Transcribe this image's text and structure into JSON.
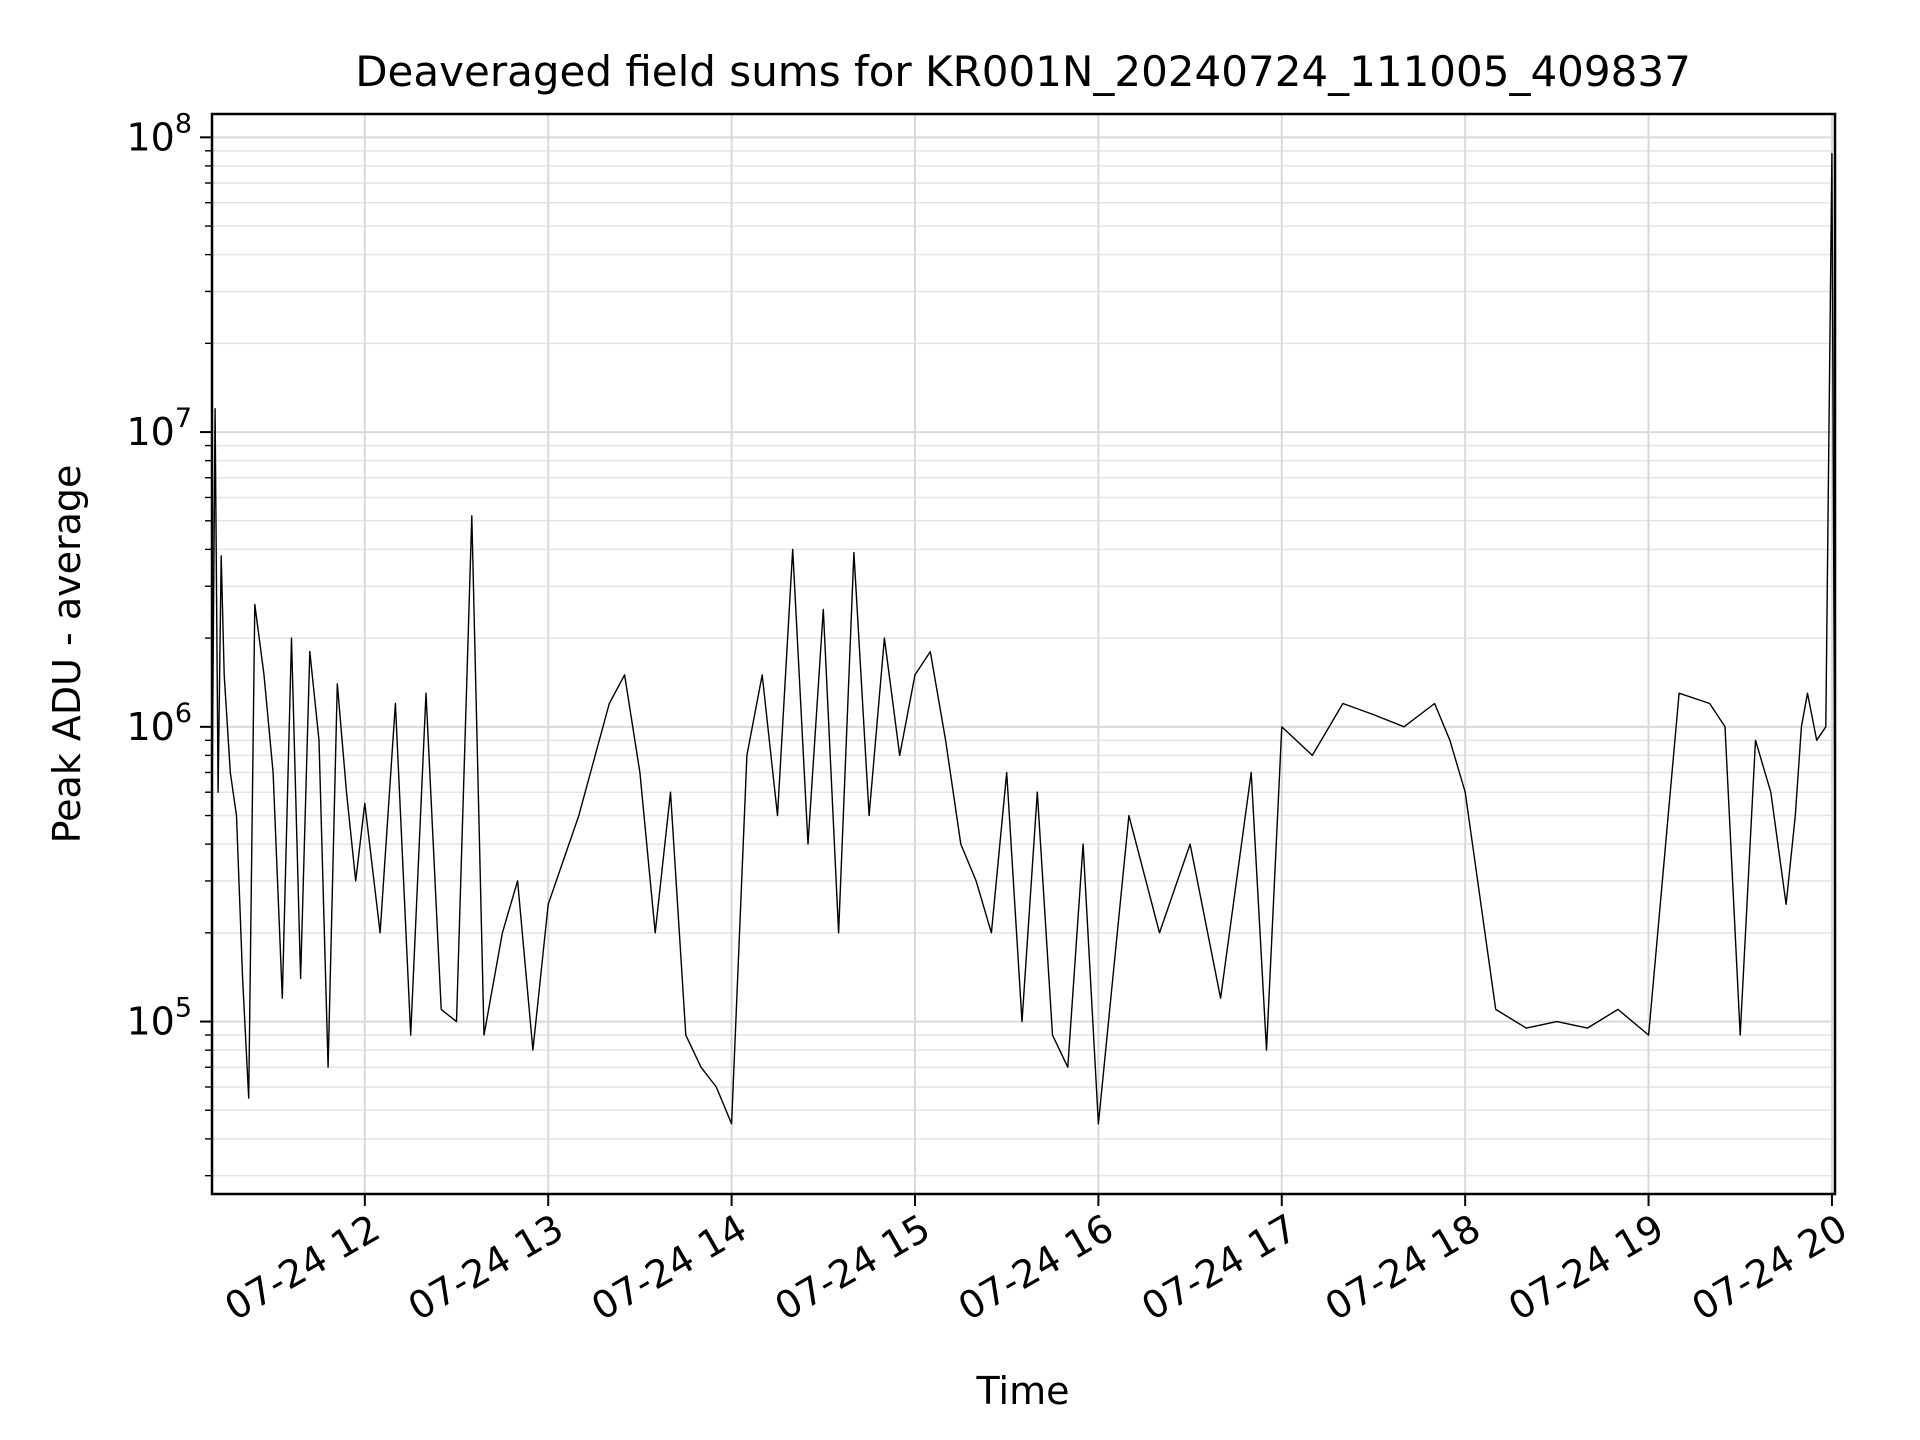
{
  "chart_data": {
    "type": "line",
    "title": "Deaveraged field sums for KR001N_20240724_111005_409837",
    "xlabel": "Time",
    "ylabel": "Peak ADU - average",
    "yscale": "log",
    "ylim": [
      26000,
      120000000
    ],
    "xlim": [
      "2024-07-24 11:10",
      "2024-07-24 20:01"
    ],
    "grid": true,
    "line_color": "#000000",
    "x_ticks": [
      {
        "value": "2024-07-24 12:00",
        "label": "07-24 12"
      },
      {
        "value": "2024-07-24 13:00",
        "label": "07-24 13"
      },
      {
        "value": "2024-07-24 14:00",
        "label": "07-24 14"
      },
      {
        "value": "2024-07-24 15:00",
        "label": "07-24 15"
      },
      {
        "value": "2024-07-24 16:00",
        "label": "07-24 16"
      },
      {
        "value": "2024-07-24 17:00",
        "label": "07-24 17"
      },
      {
        "value": "2024-07-24 18:00",
        "label": "07-24 18"
      },
      {
        "value": "2024-07-24 19:00",
        "label": "07-24 19"
      },
      {
        "value": "2024-07-24 20:00",
        "label": "07-24 20"
      }
    ],
    "y_ticks": [
      {
        "value": 100000,
        "base": "10",
        "exp": "5"
      },
      {
        "value": 1000000,
        "base": "10",
        "exp": "6"
      },
      {
        "value": 10000000,
        "base": "10",
        "exp": "7"
      },
      {
        "value": 100000000,
        "base": "10",
        "exp": "8"
      }
    ],
    "series": [
      {
        "color": "#000000",
        "x": [
          "2024-07-24 11:10",
          "2024-07-24 11:11",
          "2024-07-24 11:12",
          "2024-07-24 11:13",
          "2024-07-24 11:14",
          "2024-07-24 11:16",
          "2024-07-24 11:18",
          "2024-07-24 11:20",
          "2024-07-24 11:22",
          "2024-07-24 11:24",
          "2024-07-24 11:27",
          "2024-07-24 11:30",
          "2024-07-24 11:33",
          "2024-07-24 11:36",
          "2024-07-24 11:39",
          "2024-07-24 11:42",
          "2024-07-24 11:45",
          "2024-07-24 11:48",
          "2024-07-24 11:51",
          "2024-07-24 11:54",
          "2024-07-24 11:57",
          "2024-07-24 12:00",
          "2024-07-24 12:05",
          "2024-07-24 12:10",
          "2024-07-24 12:15",
          "2024-07-24 12:20",
          "2024-07-24 12:25",
          "2024-07-24 12:30",
          "2024-07-24 12:35",
          "2024-07-24 12:39",
          "2024-07-24 12:45",
          "2024-07-24 12:50",
          "2024-07-24 12:55",
          "2024-07-24 13:00",
          "2024-07-24 13:10",
          "2024-07-24 13:20",
          "2024-07-24 13:25",
          "2024-07-24 13:30",
          "2024-07-24 13:35",
          "2024-07-24 13:40",
          "2024-07-24 13:45",
          "2024-07-24 13:50",
          "2024-07-24 13:55",
          "2024-07-24 14:00",
          "2024-07-24 14:05",
          "2024-07-24 14:10",
          "2024-07-24 14:15",
          "2024-07-24 14:20",
          "2024-07-24 14:25",
          "2024-07-24 14:30",
          "2024-07-24 14:35",
          "2024-07-24 14:40",
          "2024-07-24 14:45",
          "2024-07-24 14:50",
          "2024-07-24 14:55",
          "2024-07-24 15:00",
          "2024-07-24 15:05",
          "2024-07-24 15:10",
          "2024-07-24 15:15",
          "2024-07-24 15:20",
          "2024-07-24 15:25",
          "2024-07-24 15:30",
          "2024-07-24 15:35",
          "2024-07-24 15:40",
          "2024-07-24 15:45",
          "2024-07-24 15:50",
          "2024-07-24 15:55",
          "2024-07-24 16:00",
          "2024-07-24 16:10",
          "2024-07-24 16:20",
          "2024-07-24 16:30",
          "2024-07-24 16:40",
          "2024-07-24 16:50",
          "2024-07-24 16:55",
          "2024-07-24 17:00",
          "2024-07-24 17:10",
          "2024-07-24 17:20",
          "2024-07-24 17:30",
          "2024-07-24 17:40",
          "2024-07-24 17:50",
          "2024-07-24 17:55",
          "2024-07-24 18:00",
          "2024-07-24 18:10",
          "2024-07-24 18:20",
          "2024-07-24 18:30",
          "2024-07-24 18:40",
          "2024-07-24 18:50",
          "2024-07-24 19:00",
          "2024-07-24 19:10",
          "2024-07-24 19:20",
          "2024-07-24 19:25",
          "2024-07-24 19:30",
          "2024-07-24 19:35",
          "2024-07-24 19:40",
          "2024-07-24 19:45",
          "2024-07-24 19:48",
          "2024-07-24 19:50",
          "2024-07-24 19:52",
          "2024-07-24 19:55",
          "2024-07-24 19:58",
          "2024-07-24 20:00",
          "2024-07-24 20:01"
        ],
        "y": [
          520000,
          12000000,
          600000,
          3800000,
          1500000,
          700000,
          500000,
          140000,
          55000,
          2600000,
          1500000,
          700000,
          120000,
          2000000,
          140000,
          1800000,
          900000,
          70000,
          1400000,
          600000,
          300000,
          550000,
          200000,
          1200000,
          90000,
          1300000,
          110000,
          100000,
          5200000,
          90000,
          200000,
          300000,
          80000,
          250000,
          500000,
          1200000,
          1500000,
          700000,
          200000,
          600000,
          90000,
          70000,
          60000,
          45000,
          800000,
          1500000,
          500000,
          4000000,
          400000,
          2500000,
          200000,
          3900000,
          500000,
          2000000,
          800000,
          1500000,
          1800000,
          900000,
          400000,
          300000,
          200000,
          700000,
          100000,
          600000,
          90000,
          70000,
          400000,
          45000,
          500000,
          200000,
          400000,
          120000,
          700000,
          80000,
          1000000,
          800000,
          1200000,
          1100000,
          1000000,
          1200000,
          900000,
          600000,
          110000,
          95000,
          100000,
          95000,
          110000,
          90000,
          1300000,
          1200000,
          1000000,
          90000,
          900000,
          600000,
          250000,
          500000,
          1000000,
          1300000,
          900000,
          1000000,
          88000000,
          380000
        ]
      }
    ]
  }
}
